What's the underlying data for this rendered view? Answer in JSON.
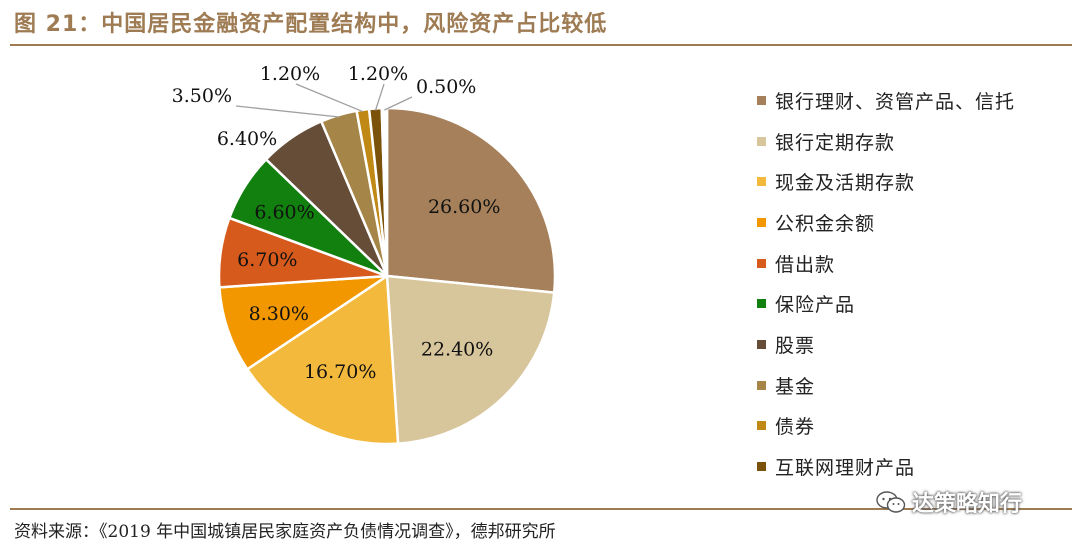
{
  "figure": {
    "title": "图 21：中国居民金融资产配置结构中，风险资产占比较低",
    "source": "资料来源：《2019 年中国城镇居民家庭资产负债情况调查》，德邦研究所",
    "watermark": "达策略知行"
  },
  "chart_data": {
    "type": "pie",
    "title": "",
    "legend_position": "right",
    "start_angle_deg": 0,
    "direction": "clockwise",
    "categories": [
      "银行理财、资管产品、信托",
      "银行定期存款",
      "现金及活期存款",
      "公积金余额",
      "借出款",
      "保险产品",
      "股票",
      "基金",
      "债券",
      "互联网理财产品"
    ],
    "values": [
      26.6,
      22.4,
      16.7,
      8.3,
      6.7,
      6.6,
      6.4,
      3.5,
      1.2,
      1.2
    ],
    "labels": [
      "26.60%",
      "22.40%",
      "16.70%",
      "8.30%",
      "6.70%",
      "6.60%",
      "6.40%",
      "3.50%",
      "1.20%",
      "1.20%"
    ],
    "extra_slice": {
      "value": 0.5,
      "label": "0.50%",
      "color": "#ffffff"
    },
    "colors": [
      "#a5805a",
      "#d7c59b",
      "#f3b93c",
      "#f29700",
      "#d65a1c",
      "#12800f",
      "#654d37",
      "#a58648",
      "#c08814",
      "#7a5209"
    ]
  }
}
